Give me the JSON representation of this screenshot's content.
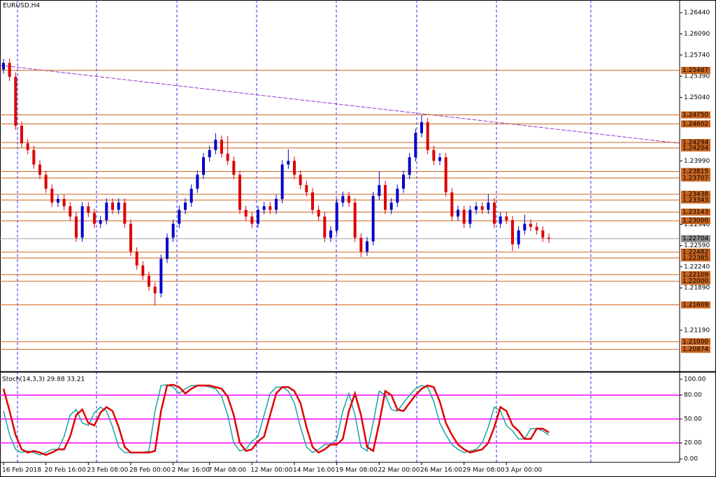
{
  "chart_data": [
    {
      "type": "candlestick",
      "title": "EURUSD,H4",
      "categories": [
        "16 Feb 2018",
        null,
        null,
        null,
        null,
        null,
        null,
        "20 Feb 16:00",
        null,
        null,
        null,
        null,
        null,
        null,
        "23 Feb 08:00",
        null,
        null,
        null,
        null,
        null,
        null,
        "28 Feb 00:00",
        null,
        null,
        null,
        null,
        null,
        null,
        "2 Mar 16:00",
        null,
        null,
        null,
        null,
        null,
        "7 Mar 08:00",
        null,
        null,
        null,
        null,
        null,
        null,
        "12 Mar 00:00",
        null,
        null,
        null,
        null,
        null,
        null,
        "14 Mar 16:00",
        null,
        null,
        null,
        null,
        null,
        null,
        "19 Mar 08:00",
        null,
        null,
        null,
        null,
        null,
        null,
        "22 Mar 00:00",
        null,
        null,
        null,
        null,
        null,
        null,
        "26 Mar 16:00",
        null,
        null,
        null,
        null,
        null,
        null,
        "29 Mar 08:00",
        null,
        null,
        null,
        null,
        null,
        null,
        "3 Apr 00:00",
        null,
        null,
        null,
        null,
        null,
        null,
        null
      ],
      "open": [
        1.255,
        1.2561,
        1.2538,
        1.2457,
        1.2428,
        1.2417,
        1.2393,
        1.2376,
        1.2353,
        1.233,
        1.2336,
        1.2324,
        1.2307,
        1.2272,
        1.2324,
        1.2313,
        1.2295,
        1.2301,
        1.233,
        1.2318,
        1.233,
        1.2295,
        1.2249,
        1.2226,
        1.2209,
        1.2191,
        1.218,
        1.2237,
        1.2272,
        1.2295,
        1.2318,
        1.233,
        1.2353,
        1.2376,
        1.2405,
        1.2417,
        1.2434,
        1.2411,
        1.2399,
        1.2376,
        1.2318,
        1.2307,
        1.2295,
        1.2318,
        1.2324,
        1.2318,
        1.2336,
        1.2393,
        1.2399,
        1.2376,
        1.2359,
        1.2347,
        1.2318,
        1.2307,
        1.2272,
        1.2284,
        1.233,
        1.2341,
        1.233,
        1.2272,
        1.2249,
        1.2266,
        1.2341,
        1.2359,
        1.2318,
        1.233,
        1.2353,
        1.2376,
        1.2405,
        1.2445,
        1.2463,
        1.2417,
        1.2399,
        1.2405,
        1.2347,
        1.2307,
        1.2318,
        1.2295,
        1.2318,
        1.2324,
        1.2318,
        1.233,
        1.2295,
        1.2307,
        1.2301,
        1.2261,
        1.2284,
        1.2295,
        1.229,
        1.2284,
        1.2272
      ],
      "high": [
        1.2568,
        1.2568,
        1.2545,
        1.2464,
        1.2435,
        1.2424,
        1.24,
        1.2383,
        1.236,
        1.2343,
        1.2343,
        1.2331,
        1.2314,
        1.2331,
        1.2331,
        1.232,
        1.2308,
        1.2337,
        1.2337,
        1.2337,
        1.2337,
        1.2302,
        1.2256,
        1.2233,
        1.2216,
        1.2198,
        1.2244,
        1.2279,
        1.2302,
        1.2325,
        1.2337,
        1.236,
        1.2383,
        1.2412,
        1.2424,
        1.2445,
        1.2441,
        1.244,
        1.2406,
        1.2383,
        1.2325,
        1.2314,
        1.2325,
        1.2331,
        1.2331,
        1.2343,
        1.24,
        1.2418,
        1.2406,
        1.2383,
        1.2366,
        1.2354,
        1.2325,
        1.2314,
        1.2291,
        1.2337,
        1.2348,
        1.2348,
        1.2337,
        1.2279,
        1.2273,
        1.2348,
        1.2382,
        1.2366,
        1.2337,
        1.236,
        1.2383,
        1.2412,
        1.2452,
        1.2475,
        1.247,
        1.2424,
        1.2412,
        1.2412,
        1.2354,
        1.2325,
        1.2325,
        1.2325,
        1.2331,
        1.2331,
        1.2344,
        1.2337,
        1.2314,
        1.2314,
        1.2308,
        1.2291,
        1.231,
        1.2302,
        1.2297,
        1.2291,
        1.2279
      ],
      "low": [
        1.2543,
        1.2531,
        1.245,
        1.2421,
        1.241,
        1.2386,
        1.2369,
        1.2346,
        1.2323,
        1.2323,
        1.2317,
        1.23,
        1.2265,
        1.2265,
        1.2306,
        1.2288,
        1.2288,
        1.2294,
        1.2311,
        1.2311,
        1.2288,
        1.2242,
        1.2219,
        1.2202,
        1.2184,
        1.216,
        1.2173,
        1.223,
        1.2265,
        1.2288,
        1.2311,
        1.2323,
        1.2346,
        1.2369,
        1.2398,
        1.241,
        1.2404,
        1.2392,
        1.2369,
        1.2311,
        1.23,
        1.2288,
        1.2288,
        1.2311,
        1.2311,
        1.2311,
        1.2329,
        1.2386,
        1.2369,
        1.2352,
        1.234,
        1.2311,
        1.23,
        1.2265,
        1.2265,
        1.2277,
        1.2323,
        1.2323,
        1.2265,
        1.224,
        1.2242,
        1.2259,
        1.2334,
        1.2311,
        1.2311,
        1.2323,
        1.2346,
        1.2369,
        1.2398,
        1.2438,
        1.241,
        1.2392,
        1.2392,
        1.234,
        1.23,
        1.23,
        1.2288,
        1.2288,
        1.2311,
        1.2311,
        1.2311,
        1.2288,
        1.2288,
        1.2294,
        1.225,
        1.2254,
        1.2277,
        1.2283,
        1.2277,
        1.2265,
        1.2263
      ],
      "close": [
        1.2561,
        1.2538,
        1.2457,
        1.2428,
        1.2417,
        1.2393,
        1.2376,
        1.2353,
        1.233,
        1.2336,
        1.2324,
        1.2307,
        1.2272,
        1.2324,
        1.2313,
        1.2295,
        1.2301,
        1.233,
        1.2318,
        1.233,
        1.2295,
        1.2249,
        1.2226,
        1.2209,
        1.2191,
        1.218,
        1.2237,
        1.2272,
        1.2295,
        1.2318,
        1.233,
        1.2353,
        1.2376,
        1.2405,
        1.2417,
        1.2434,
        1.2411,
        1.2399,
        1.2376,
        1.2318,
        1.2307,
        1.2295,
        1.2318,
        1.2324,
        1.2318,
        1.2336,
        1.2393,
        1.2399,
        1.2376,
        1.2359,
        1.2347,
        1.2318,
        1.2307,
        1.2272,
        1.2284,
        1.233,
        1.2341,
        1.233,
        1.2272,
        1.2249,
        1.2266,
        1.2341,
        1.2359,
        1.2318,
        1.233,
        1.2353,
        1.2376,
        1.2405,
        1.2445,
        1.2463,
        1.2417,
        1.2399,
        1.2405,
        1.2347,
        1.2307,
        1.2318,
        1.2295,
        1.2318,
        1.2324,
        1.2318,
        1.233,
        1.2295,
        1.2307,
        1.2301,
        1.2261,
        1.2284,
        1.2295,
        1.229,
        1.2284,
        1.2272,
        1.227
      ],
      "up_color": "#0000cc",
      "down_color": "#dd0000",
      "ylim": [
        1.2053,
        1.2665
      ],
      "yticks": [
        {
          "value": 1.2644,
          "label": "1.26440"
        },
        {
          "value": 1.2609,
          "label": "1.26090"
        },
        {
          "value": 1.2574,
          "label": "1.25740"
        },
        {
          "value": 1.2539,
          "label": "1.25390"
        },
        {
          "value": 1.2504,
          "label": "1.25040"
        },
        {
          "value": 1.2399,
          "label": "1.23990"
        },
        {
          "value": 1.2294,
          "label": "1.22940"
        },
        {
          "value": 1.2259,
          "label": "1.22590"
        },
        {
          "value": 1.2224,
          "label": "1.22240"
        },
        {
          "value": 1.2189,
          "label": "1.21890"
        },
        {
          "value": 1.2119,
          "label": "1.21190"
        }
      ],
      "levels": [
        1.25487,
        {
          "value": 1.2475,
          "label": "1.24750"
        },
        1.24602,
        1.24294,
        1.24204,
        1.23815,
        1.23707,
        1.23438,
        1.23343,
        1.23143,
        {
          "value": 1.23,
          "label": "1.23000"
        },
        1.22482,
        1.22385,
        1.22109,
        {
          "value": 1.22,
          "label": "1.22000"
        },
        1.21609,
        {
          "value": 1.21,
          "label": "1.21000"
        },
        1.20874
      ],
      "level_color": "#c8641e",
      "current": 1.22704,
      "trendline": [
        1.2557,
        1.2428
      ],
      "trendline_color": "#9933cc"
    },
    {
      "type": "line",
      "title": "Stoch(14,3,3) 29.88 33.21",
      "series": [
        {
          "color": "#20a0a0",
          "values": [
            60,
            30,
            12,
            8,
            10,
            8,
            5,
            8,
            12,
            12,
            28,
            55,
            62,
            45,
            42,
            58,
            65,
            60,
            40,
            15,
            8,
            8,
            8,
            8,
            10,
            60,
            92,
            93,
            90,
            82,
            88,
            92,
            92,
            92,
            90,
            88,
            78,
            55,
            20,
            10,
            12,
            22,
            28,
            55,
            82,
            90,
            90,
            85,
            70,
            40,
            15,
            8,
            12,
            18,
            18,
            25,
            60,
            82,
            55,
            15,
            10,
            45,
            85,
            80,
            62,
            60,
            70,
            80,
            88,
            92,
            90,
            72,
            45,
            30,
            18,
            12,
            8,
            10,
            12,
            20,
            40,
            65,
            60,
            42,
            35,
            25,
            25,
            38,
            38,
            35,
            29.88
          ]
        },
        {
          "color": "#e00000",
          "values": [
            88,
            60,
            30,
            12,
            8,
            10,
            8,
            5,
            8,
            12,
            12,
            28,
            55,
            62,
            45,
            42,
            58,
            65,
            60,
            40,
            15,
            8,
            8,
            8,
            8,
            10,
            60,
            92,
            93,
            90,
            82,
            88,
            92,
            92,
            92,
            90,
            88,
            78,
            55,
            20,
            10,
            12,
            22,
            28,
            55,
            82,
            90,
            90,
            85,
            70,
            40,
            15,
            8,
            12,
            18,
            18,
            25,
            60,
            82,
            55,
            15,
            10,
            45,
            85,
            80,
            62,
            60,
            70,
            80,
            88,
            92,
            90,
            72,
            45,
            30,
            18,
            12,
            8,
            10,
            12,
            20,
            40,
            65,
            60,
            42,
            35,
            25,
            25,
            38,
            38,
            33.21
          ]
        }
      ],
      "ylim": [
        -4.3,
        106.9
      ],
      "yticks": [
        {
          "value": 100,
          "label": "100.00"
        },
        {
          "value": 80,
          "label": "80.00"
        },
        {
          "value": 50,
          "label": "50.00"
        },
        {
          "value": 20,
          "label": "20.00"
        },
        {
          "value": 0,
          "label": "0.00"
        }
      ],
      "levels": [
        80,
        50,
        20
      ],
      "level_color": "#ff00ff"
    }
  ]
}
